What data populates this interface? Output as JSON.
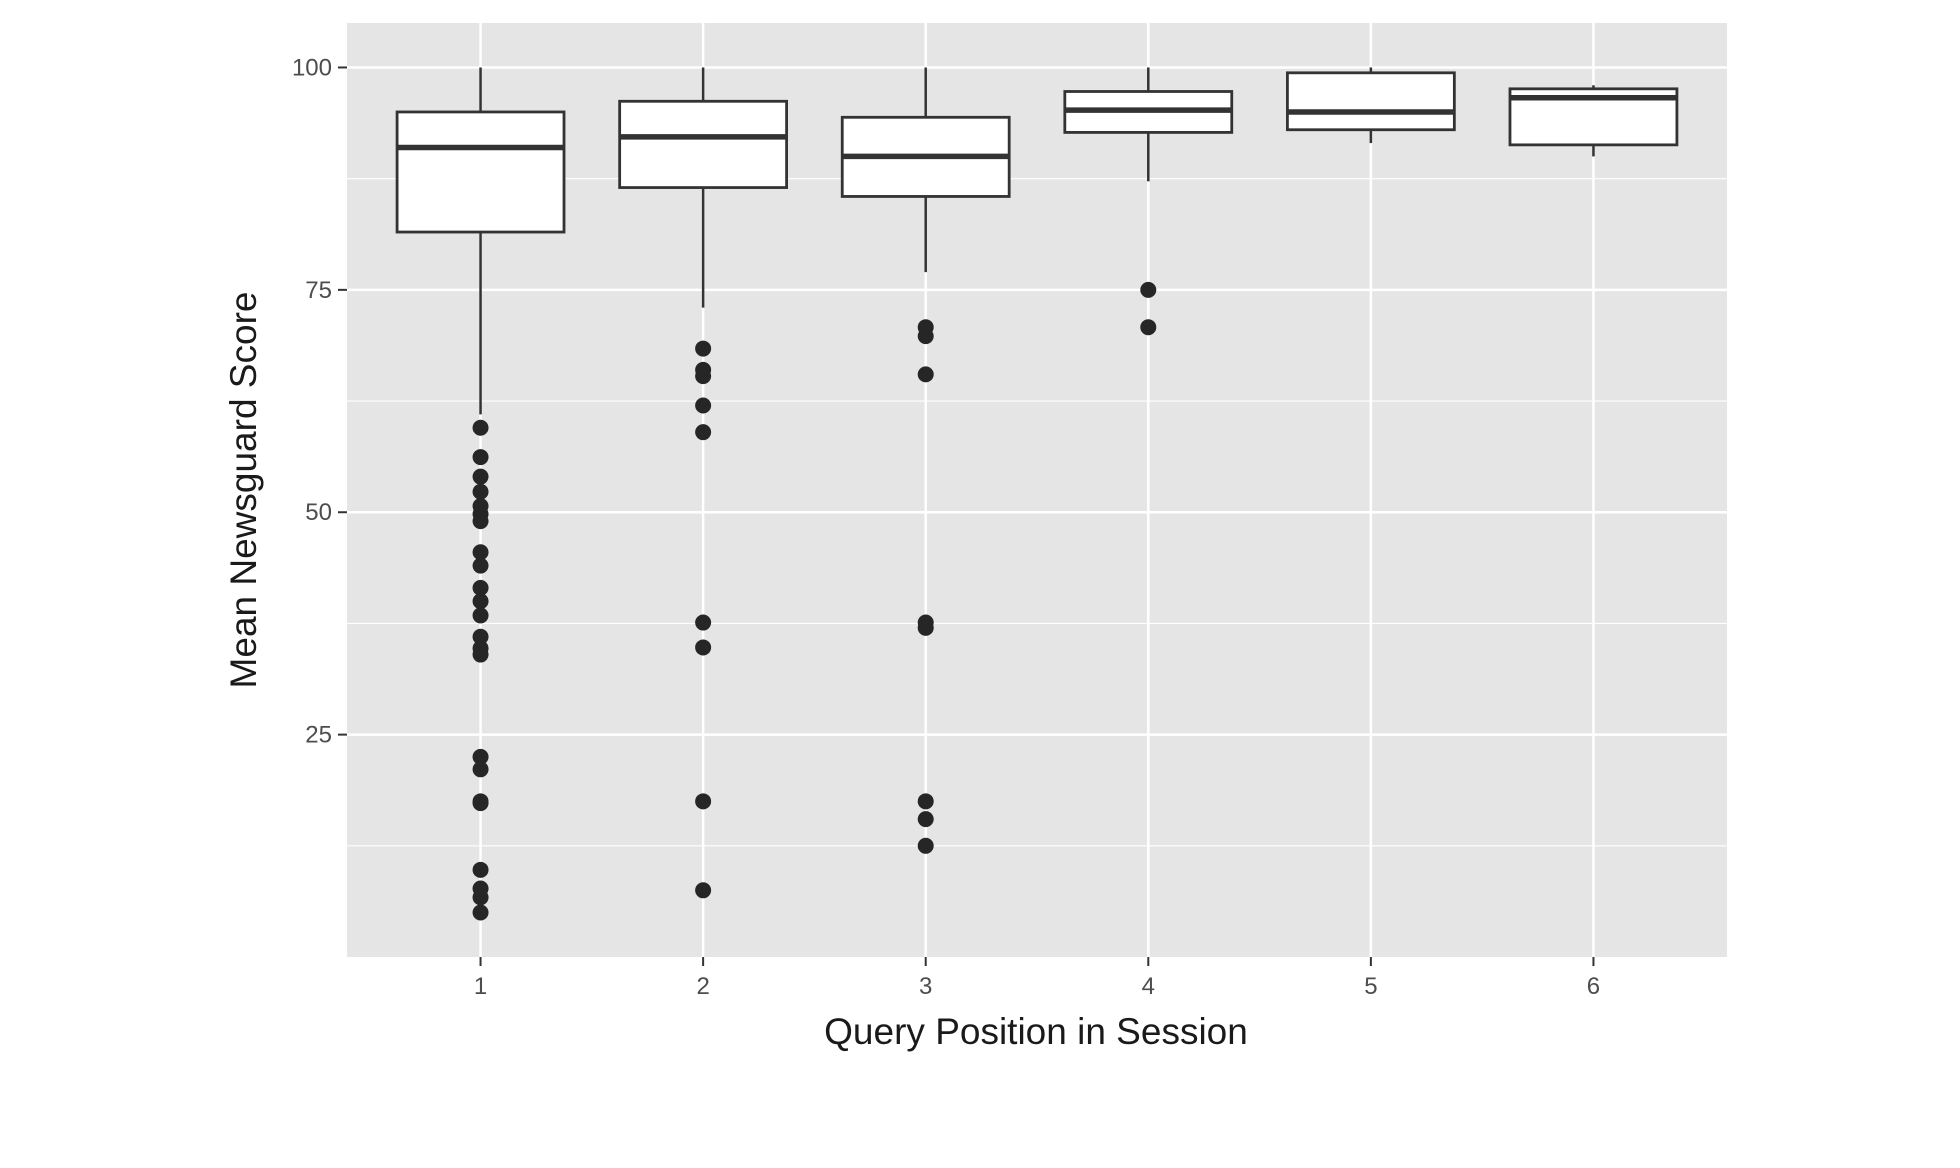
{
  "chart_data": {
    "type": "boxplot",
    "xlabel": "Query Position in Session",
    "ylabel": "Mean Newsguard Score",
    "categories": [
      "1",
      "2",
      "3",
      "4",
      "5",
      "6"
    ],
    "ylim": [
      0,
      105
    ],
    "yticks": [
      25,
      50,
      75,
      100
    ],
    "grid": true,
    "colors": {
      "panel": "#e5e5e5",
      "grid": "#ffffff",
      "box_fill": "#ffffff",
      "stroke": "#333333",
      "outlier": "#262626"
    },
    "boxes": [
      {
        "category": "1",
        "whisker_low": 61,
        "q1": 81.5,
        "median": 91,
        "q3": 95,
        "whisker_high": 100,
        "outliers": [
          59.5,
          56.2,
          54,
          52.3,
          50.7,
          49.8,
          49,
          45.5,
          44,
          41.5,
          40,
          38.4,
          36,
          34.7,
          34,
          22.5,
          21.1,
          17.5,
          17.3,
          9.8,
          7.7,
          6.7,
          5
        ]
      },
      {
        "category": "2",
        "whisker_low": 73,
        "q1": 86.5,
        "median": 92.2,
        "q3": 96.2,
        "whisker_high": 100,
        "outliers": [
          68.4,
          66,
          65.3,
          62,
          59,
          37.6,
          34.8,
          17.5,
          7.5
        ]
      },
      {
        "category": "3",
        "whisker_low": 77,
        "q1": 85.5,
        "median": 90,
        "q3": 94.4,
        "whisker_high": 100,
        "outliers": [
          70.8,
          69.8,
          65.5,
          37.6,
          37,
          17.5,
          15.5,
          12.5
        ]
      },
      {
        "category": "4",
        "whisker_low": 87.2,
        "q1": 92.7,
        "median": 95.2,
        "q3": 97.3,
        "whisker_high": 100,
        "outliers": [
          75,
          70.8
        ]
      },
      {
        "category": "5",
        "whisker_low": 91.5,
        "q1": 93,
        "median": 95,
        "q3": 99.4,
        "whisker_high": 100,
        "outliers": []
      },
      {
        "category": "6",
        "whisker_low": 90,
        "q1": 91.3,
        "median": 96.6,
        "q3": 97.6,
        "whisker_high": 98,
        "outliers": []
      }
    ]
  }
}
